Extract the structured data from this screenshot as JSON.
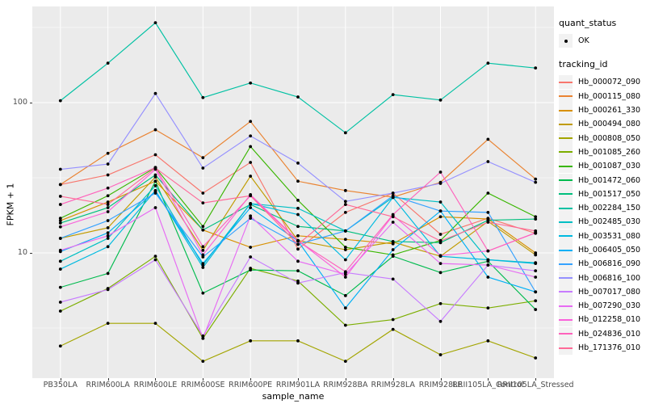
{
  "figure": {
    "background": "#FFFFFF",
    "panel_background": "#EBEBEB",
    "gridline_color": "#FFFFFF",
    "tick_label_color": "#4D4D4D",
    "axis_title_color": "#000000",
    "point_color": "#000000",
    "legend_key_background": "#F2F2F2"
  },
  "legend": {
    "quant_status": {
      "title": "quant_status",
      "items": [
        {
          "label": "OK",
          "symbol": "black-point"
        }
      ]
    },
    "tracking_id": {
      "title": "tracking_id"
    }
  },
  "chart_data": {
    "type": "line",
    "title": "",
    "xlabel": "sample_name",
    "ylabel": "FPKM + 1",
    "y_scale": "log10",
    "y_ticks": [
      10,
      100
    ],
    "y_minor_ticks": [
      3.162,
      31.62,
      316.2
    ],
    "ylim": [
      1.5,
      440
    ],
    "grid": true,
    "legend_position": "right",
    "point_marker": "black-dot",
    "categories": [
      "PB350LA",
      "RRIM600LA",
      "RRIM600LE",
      "RRIM600SE",
      "RRIM600PE",
      "RRIM901LA",
      "RRIM928BA",
      "RRIM928LA",
      "RRIM928LE",
      "RRII105LA_Control",
      "RRII105LA_Stressed"
    ],
    "series": [
      {
        "name": "Hb_000072_090",
        "color": "#F8766D",
        "values": [
          28.5,
          33,
          45,
          25,
          40,
          10.6,
          18.6,
          25,
          13.3,
          17,
          13.5
        ]
      },
      {
        "name": "Hb_000115_080",
        "color": "#EA8331",
        "values": [
          28.5,
          46,
          66,
          43,
          75,
          30,
          26,
          23.5,
          29.5,
          57,
          31
        ]
      },
      {
        "name": "Hb_000261_330",
        "color": "#D89000",
        "values": [
          16.4,
          21.8,
          30,
          14.2,
          10.9,
          13,
          12.3,
          11.5,
          17.4,
          16.8,
          10
        ]
      },
      {
        "name": "Hb_000494_080",
        "color": "#C09B00",
        "values": [
          12.5,
          14.7,
          32,
          10.4,
          32.4,
          12.1,
          10.5,
          11.8,
          9.5,
          16.2,
          9.7
        ]
      },
      {
        "name": "Hb_000808_050",
        "color": "#A3A500",
        "values": [
          2.4,
          3.4,
          3.4,
          1.9,
          2.6,
          2.6,
          1.9,
          3.1,
          2.1,
          2.6,
          2.0
        ]
      },
      {
        "name": "Hb_001085_260",
        "color": "#7CAE00",
        "values": [
          4.1,
          5.8,
          9.5,
          2.7,
          7.9,
          6.5,
          3.3,
          3.6,
          4.6,
          4.3,
          4.8
        ]
      },
      {
        "name": "Hb_001087_030",
        "color": "#39B600",
        "values": [
          17,
          24,
          37,
          15,
          51,
          22.4,
          10.9,
          9.7,
          12.1,
          25,
          17.4
        ]
      },
      {
        "name": "Hb_001472_060",
        "color": "#00BB4E",
        "values": [
          5.9,
          7.3,
          30,
          5.4,
          7.7,
          7.6,
          5.2,
          9.5,
          7.4,
          8.8,
          4.2
        ]
      },
      {
        "name": "Hb_001517_050",
        "color": "#00BF7D",
        "values": [
          15.8,
          20,
          33,
          14.2,
          21,
          15,
          14,
          11.9,
          11.7,
          16.5,
          16.8
        ]
      },
      {
        "name": "Hb_002284_150",
        "color": "#00C1A3",
        "values": [
          103,
          183,
          340,
          108,
          135,
          109,
          63,
          113,
          104,
          183,
          170
        ]
      },
      {
        "name": "Hb_002485_030",
        "color": "#00BFC4",
        "values": [
          8.8,
          12.5,
          28,
          8.3,
          21.3,
          19.8,
          14,
          23.4,
          21.8,
          9,
          8.6
        ]
      },
      {
        "name": "Hb_003531_080",
        "color": "#00BAE0",
        "values": [
          7.8,
          11,
          26,
          8,
          21.3,
          18,
          9,
          23.4,
          9.5,
          9,
          8.5
        ]
      },
      {
        "name": "Hb_006405_050",
        "color": "#00B0F6",
        "values": [
          10.2,
          13.6,
          25.7,
          8.5,
          20,
          12,
          4.3,
          10.5,
          19,
          6.9,
          5.5
        ]
      },
      {
        "name": "Hb_006816_090",
        "color": "#35A2FF",
        "values": [
          12.5,
          16.4,
          25,
          9.4,
          17,
          11.4,
          14,
          24,
          19,
          18.6,
          5.5
        ]
      },
      {
        "name": "Hb_006816_100",
        "color": "#9590FF",
        "values": [
          36,
          39,
          115,
          36.7,
          60,
          39.6,
          22,
          25,
          29,
          40.5,
          29.5
        ]
      },
      {
        "name": "Hb_007017_080",
        "color": "#C77CFF",
        "values": [
          4.7,
          5.7,
          9,
          2.8,
          9.4,
          6.3,
          7.4,
          6.7,
          3.5,
          8.3,
          7.6
        ]
      },
      {
        "name": "Hb_007290_030",
        "color": "#E76BF3",
        "values": [
          10.4,
          13,
          20,
          2.7,
          17.6,
          8.8,
          7.2,
          16,
          8.5,
          8.3,
          6.9
        ]
      },
      {
        "name": "Hb_012258_010",
        "color": "#FA62DB",
        "values": [
          14.9,
          18.8,
          36,
          9.7,
          24.4,
          12.1,
          6.9,
          17.8,
          9.6,
          10.3,
          13.6
        ]
      },
      {
        "name": "Hb_024836_010",
        "color": "#FF62BC",
        "values": [
          21,
          27,
          37,
          11,
          24,
          12,
          7.5,
          18,
          34.5,
          10.3,
          13.6
        ]
      },
      {
        "name": "Hb_171376_010",
        "color": "#FF6A98",
        "values": [
          23.8,
          21,
          36.7,
          21.5,
          24,
          11.4,
          21,
          17.4,
          12,
          16,
          14
        ]
      }
    ]
  }
}
